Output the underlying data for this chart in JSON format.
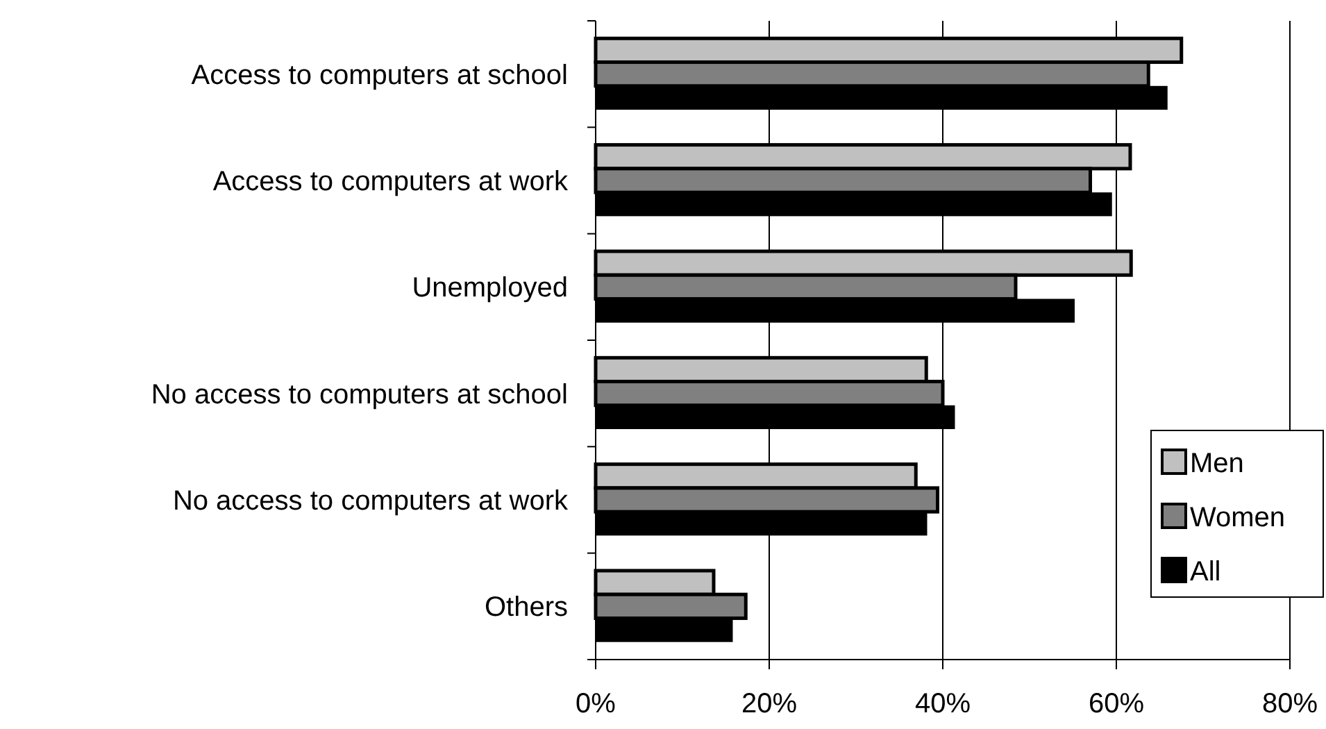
{
  "chart_data": {
    "type": "bar",
    "orientation": "horizontal",
    "categories": [
      "Access to computers at school",
      "Access to computers at work",
      "Unemployed",
      "No access to computers at school",
      "No access to computers at work",
      "Others"
    ],
    "series": [
      {
        "name": "Men",
        "color": "#c0c0c0",
        "values": [
          67.5,
          61.6,
          61.7,
          38.1,
          36.9,
          13.6
        ]
      },
      {
        "name": "Women",
        "color": "#808080",
        "values": [
          63.7,
          57.0,
          48.4,
          40.0,
          39.4,
          17.3
        ]
      },
      {
        "name": "All",
        "color": "#000000",
        "values": [
          65.9,
          59.5,
          55.2,
          41.4,
          38.2,
          15.8
        ]
      }
    ],
    "xlim": [
      0,
      80
    ],
    "xticks": [
      {
        "value": 0,
        "label": "0%"
      },
      {
        "value": 20,
        "label": "20%"
      },
      {
        "value": 40,
        "label": "40%"
      },
      {
        "value": 60,
        "label": "60%"
      },
      {
        "value": 80,
        "label": "80%"
      }
    ],
    "grid": "x",
    "legend": "right"
  }
}
